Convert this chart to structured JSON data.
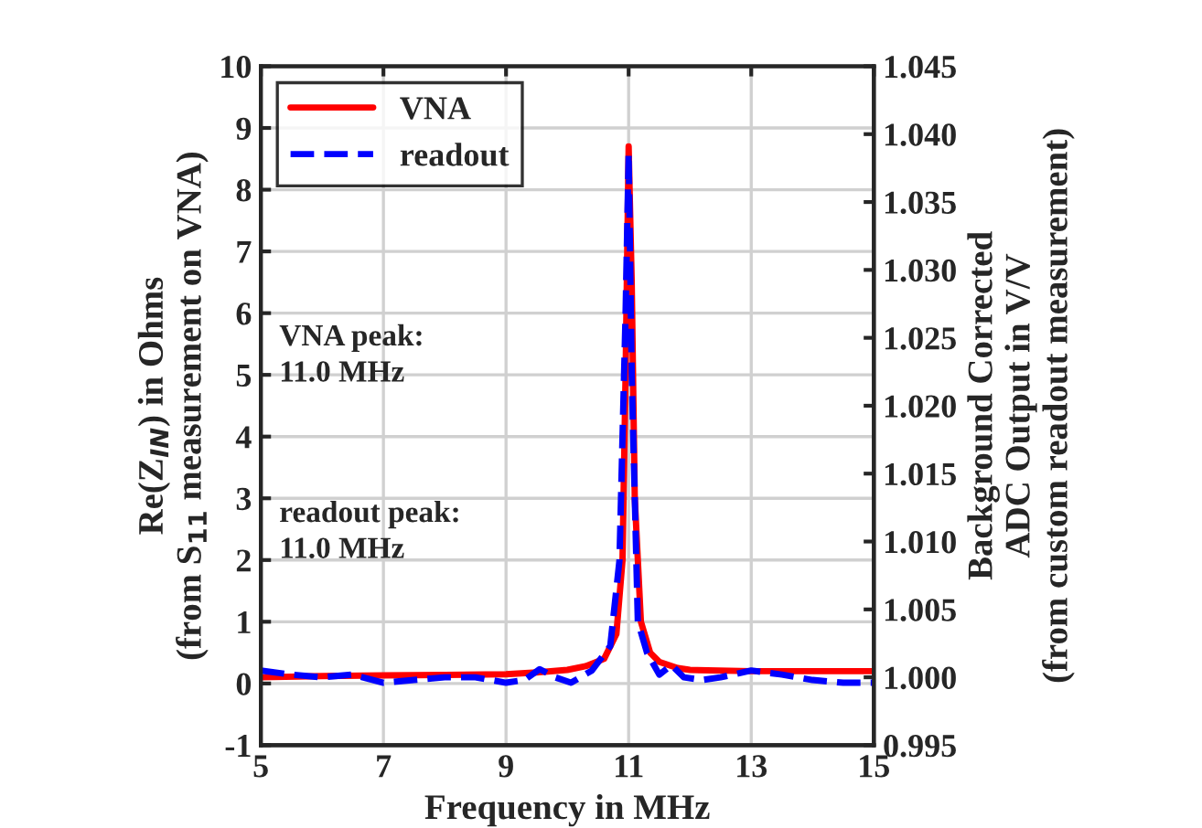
{
  "chart_data": {
    "type": "line",
    "xlabel": "Frequency in MHz",
    "ylabel": "Re(Z$_{IN}$) in Ohms\n(from S$_{11}$ measurement on VNA)",
    "y2label": "Background Corrected\nADC Output in V/V\n(from custom readout measurement)",
    "xlim": [
      5,
      15
    ],
    "xticks": [
      5,
      7,
      9,
      11,
      13,
      15
    ],
    "ylim": [
      -1,
      10
    ],
    "yticks": [
      -1,
      0,
      1,
      2,
      3,
      4,
      5,
      6,
      7,
      8,
      9,
      10
    ],
    "y2lim": [
      0.995,
      1.045
    ],
    "y2ticks": [
      {
        "value": 0.995,
        "label": "0.995"
      },
      {
        "value": 1.0,
        "label": "1.000"
      },
      {
        "value": 1.005,
        "label": "1.005"
      },
      {
        "value": 1.01,
        "label": "1.010"
      },
      {
        "value": 1.015,
        "label": "1.015"
      },
      {
        "value": 1.02,
        "label": "1.020"
      },
      {
        "value": 1.025,
        "label": "1.025"
      },
      {
        "value": 1.03,
        "label": "1.030"
      },
      {
        "value": 1.035,
        "label": "1.035"
      },
      {
        "value": 1.04,
        "label": "1.040"
      },
      {
        "value": 1.045,
        "label": "1.045"
      }
    ],
    "grid": true,
    "legend": "top left",
    "annotations": [
      "VNA peak:\n11.0 MHz",
      "readout peak:\n11.0 MHz"
    ],
    "series": [
      {
        "name": "VNA",
        "color": "#ff0000",
        "line_style": "solid",
        "x": [
          5,
          6,
          7,
          8,
          9,
          9.5,
          10,
          10.3,
          10.6,
          10.8,
          10.9,
          10.95,
          11.0,
          11.05,
          11.1,
          11.2,
          11.35,
          11.5,
          11.8,
          12,
          13,
          14,
          15
        ],
        "values": [
          0.1,
          0.12,
          0.13,
          0.14,
          0.15,
          0.18,
          0.22,
          0.28,
          0.4,
          0.8,
          2.0,
          5.0,
          8.7,
          6.5,
          3.0,
          1.0,
          0.5,
          0.35,
          0.25,
          0.22,
          0.2,
          0.2,
          0.2
        ]
      },
      {
        "name": "readout",
        "color": "#0000ff",
        "line_style": "dashed",
        "axis": "y2",
        "x": [
          5,
          5.5,
          6,
          6.5,
          7,
          7.5,
          8,
          8.5,
          9,
          9.3,
          9.55,
          9.8,
          10.06,
          10.4,
          10.7,
          10.85,
          10.95,
          11.0,
          11.05,
          11.15,
          11.3,
          11.5,
          11.7,
          11.9,
          12.2,
          12.5,
          13,
          13.5,
          14,
          14.5,
          15
        ],
        "values": [
          1.0005,
          1.0002,
          1.0,
          1.0002,
          0.9996,
          0.9998,
          1.0,
          1.0,
          0.9996,
          0.9998,
          1.0006,
          1.0,
          0.9996,
          1.0005,
          1.0023,
          1.0086,
          1.0268,
          1.0386,
          1.0223,
          1.0041,
          1.0018,
          1.0002,
          1.0009,
          1.0,
          0.9998,
          1.0,
          1.0005,
          1.0002,
          0.9998,
          0.9996,
          0.9996
        ]
      }
    ]
  }
}
